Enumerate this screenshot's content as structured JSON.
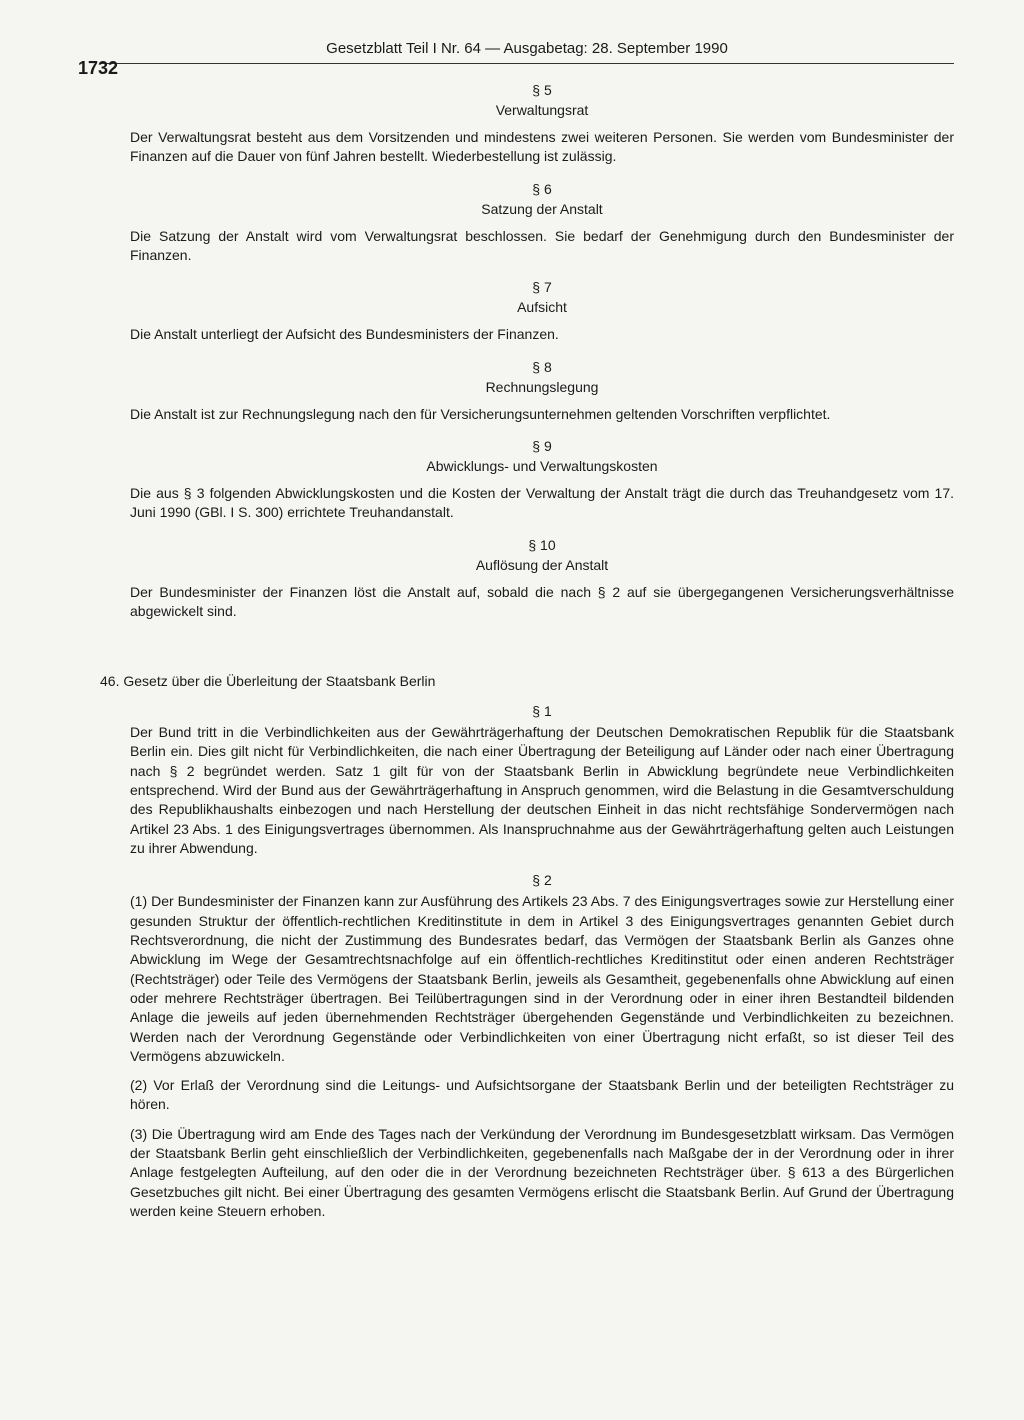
{
  "page": {
    "number": "1732",
    "header": "Gesetzblatt Teil I Nr. 64 — Ausgabetag: 28. September 1990"
  },
  "sections": {
    "s5": {
      "num": "§ 5",
      "title": "Verwaltungsrat",
      "body": "Der Verwaltungsrat besteht aus dem Vorsitzenden und mindestens zwei weiteren Personen. Sie werden vom Bundesminister der Finanzen auf die Dauer von fünf Jahren bestellt. Wiederbestellung ist zulässig."
    },
    "s6": {
      "num": "§ 6",
      "title": "Satzung der Anstalt",
      "body": "Die Satzung der Anstalt wird vom Verwaltungsrat beschlossen. Sie bedarf der Genehmigung durch den Bundesminister der Finanzen."
    },
    "s7": {
      "num": "§ 7",
      "title": "Aufsicht",
      "body": "Die Anstalt unterliegt der Aufsicht des Bundesministers der Finanzen."
    },
    "s8": {
      "num": "§ 8",
      "title": "Rechnungslegung",
      "body": "Die Anstalt ist zur Rechnungslegung nach den für Versicherungsunternehmen geltenden Vorschriften verpflichtet."
    },
    "s9": {
      "num": "§ 9",
      "title": "Abwicklungs- und Verwaltungskosten",
      "body": "Die aus § 3 folgenden Abwicklungskosten und die Kosten der Verwaltung der Anstalt trägt die durch das Treuhandgesetz vom 17. Juni 1990 (GBl. I S. 300) errichtete Treuhandanstalt."
    },
    "s10": {
      "num": "§ 10",
      "title": "Auflösung der Anstalt",
      "body": "Der Bundesminister der Finanzen löst die Anstalt auf, sobald die nach § 2 auf sie übergegangenen Versicherungsverhältnisse abgewickelt sind."
    }
  },
  "law46": {
    "title": "46. Gesetz über die Überleitung der Staatsbank Berlin",
    "s1": {
      "num": "§ 1",
      "body": "Der Bund tritt in die Verbindlichkeiten aus der Gewährträgerhaftung der Deutschen Demokratischen Republik für die Staatsbank Berlin ein. Dies gilt nicht für Verbindlichkeiten, die nach einer Übertragung der Beteiligung auf Länder oder nach einer Übertragung nach § 2 begründet werden. Satz 1 gilt für von der Staatsbank Berlin in Abwicklung begründete neue Verbindlichkeiten entsprechend. Wird der Bund aus der Gewährträgerhaftung in Anspruch genommen, wird die Belastung in die Gesamtverschuldung des Republikhaushalts einbezogen und nach Herstellung der deutschen Einheit in das nicht rechtsfähige Sondervermögen nach Artikel 23 Abs. 1 des Einigungsvertrages übernommen. Als Inanspruchnahme aus der Gewährträgerhaftung gelten auch Leistungen zu ihrer Abwendung."
    },
    "s2": {
      "num": "§ 2",
      "p1": "(1) Der Bundesminister der Finanzen kann zur Ausführung des Artikels 23 Abs. 7 des Einigungsvertrages sowie zur Herstellung einer gesunden Struktur der öffentlich-rechtlichen Kreditinstitute in dem in Artikel 3 des Einigungsvertrages genannten Gebiet durch Rechtsverordnung, die nicht der Zustimmung des Bundesrates bedarf, das Vermögen der Staatsbank Berlin als Ganzes ohne Abwicklung im Wege der Gesamtrechtsnachfolge auf ein öffentlich-rechtliches Kreditinstitut oder einen anderen Rechtsträger (Rechtsträger) oder Teile des Vermögens der Staatsbank Berlin, jeweils als Gesamtheit, gegebenenfalls ohne Abwicklung auf einen oder mehrere Rechtsträger übertragen. Bei Teilübertragungen sind in der Verordnung oder in einer ihren Bestandteil bildenden Anlage die jeweils auf jeden übernehmenden Rechtsträger übergehenden Gegenstände und Verbindlichkeiten zu bezeichnen. Werden nach der Verordnung Gegenstände oder Verbindlichkeiten von einer Übertragung nicht erfaßt, so ist dieser Teil des Vermögens abzuwickeln.",
      "p2": "(2) Vor Erlaß der Verordnung sind die Leitungs- und Aufsichtsorgane der Staatsbank Berlin und der beteiligten Rechtsträger zu hören.",
      "p3": "(3) Die Übertragung wird am Ende des Tages nach der Verkündung der Verordnung im Bundesgesetzblatt wirksam. Das Vermögen der Staatsbank Berlin geht einschließlich der Verbindlichkeiten, gegebenenfalls nach Maßgabe der in der Verordnung oder in ihrer Anlage festgelegten Aufteilung, auf den oder die in der Verordnung bezeichneten Rechtsträger über. § 613 a des Bürgerlichen Gesetzbuches gilt nicht. Bei einer Übertragung des gesamten Vermögens erlischt die Staatsbank Berlin. Auf Grund der Übertragung werden keine Steuern erhoben."
    }
  }
}
